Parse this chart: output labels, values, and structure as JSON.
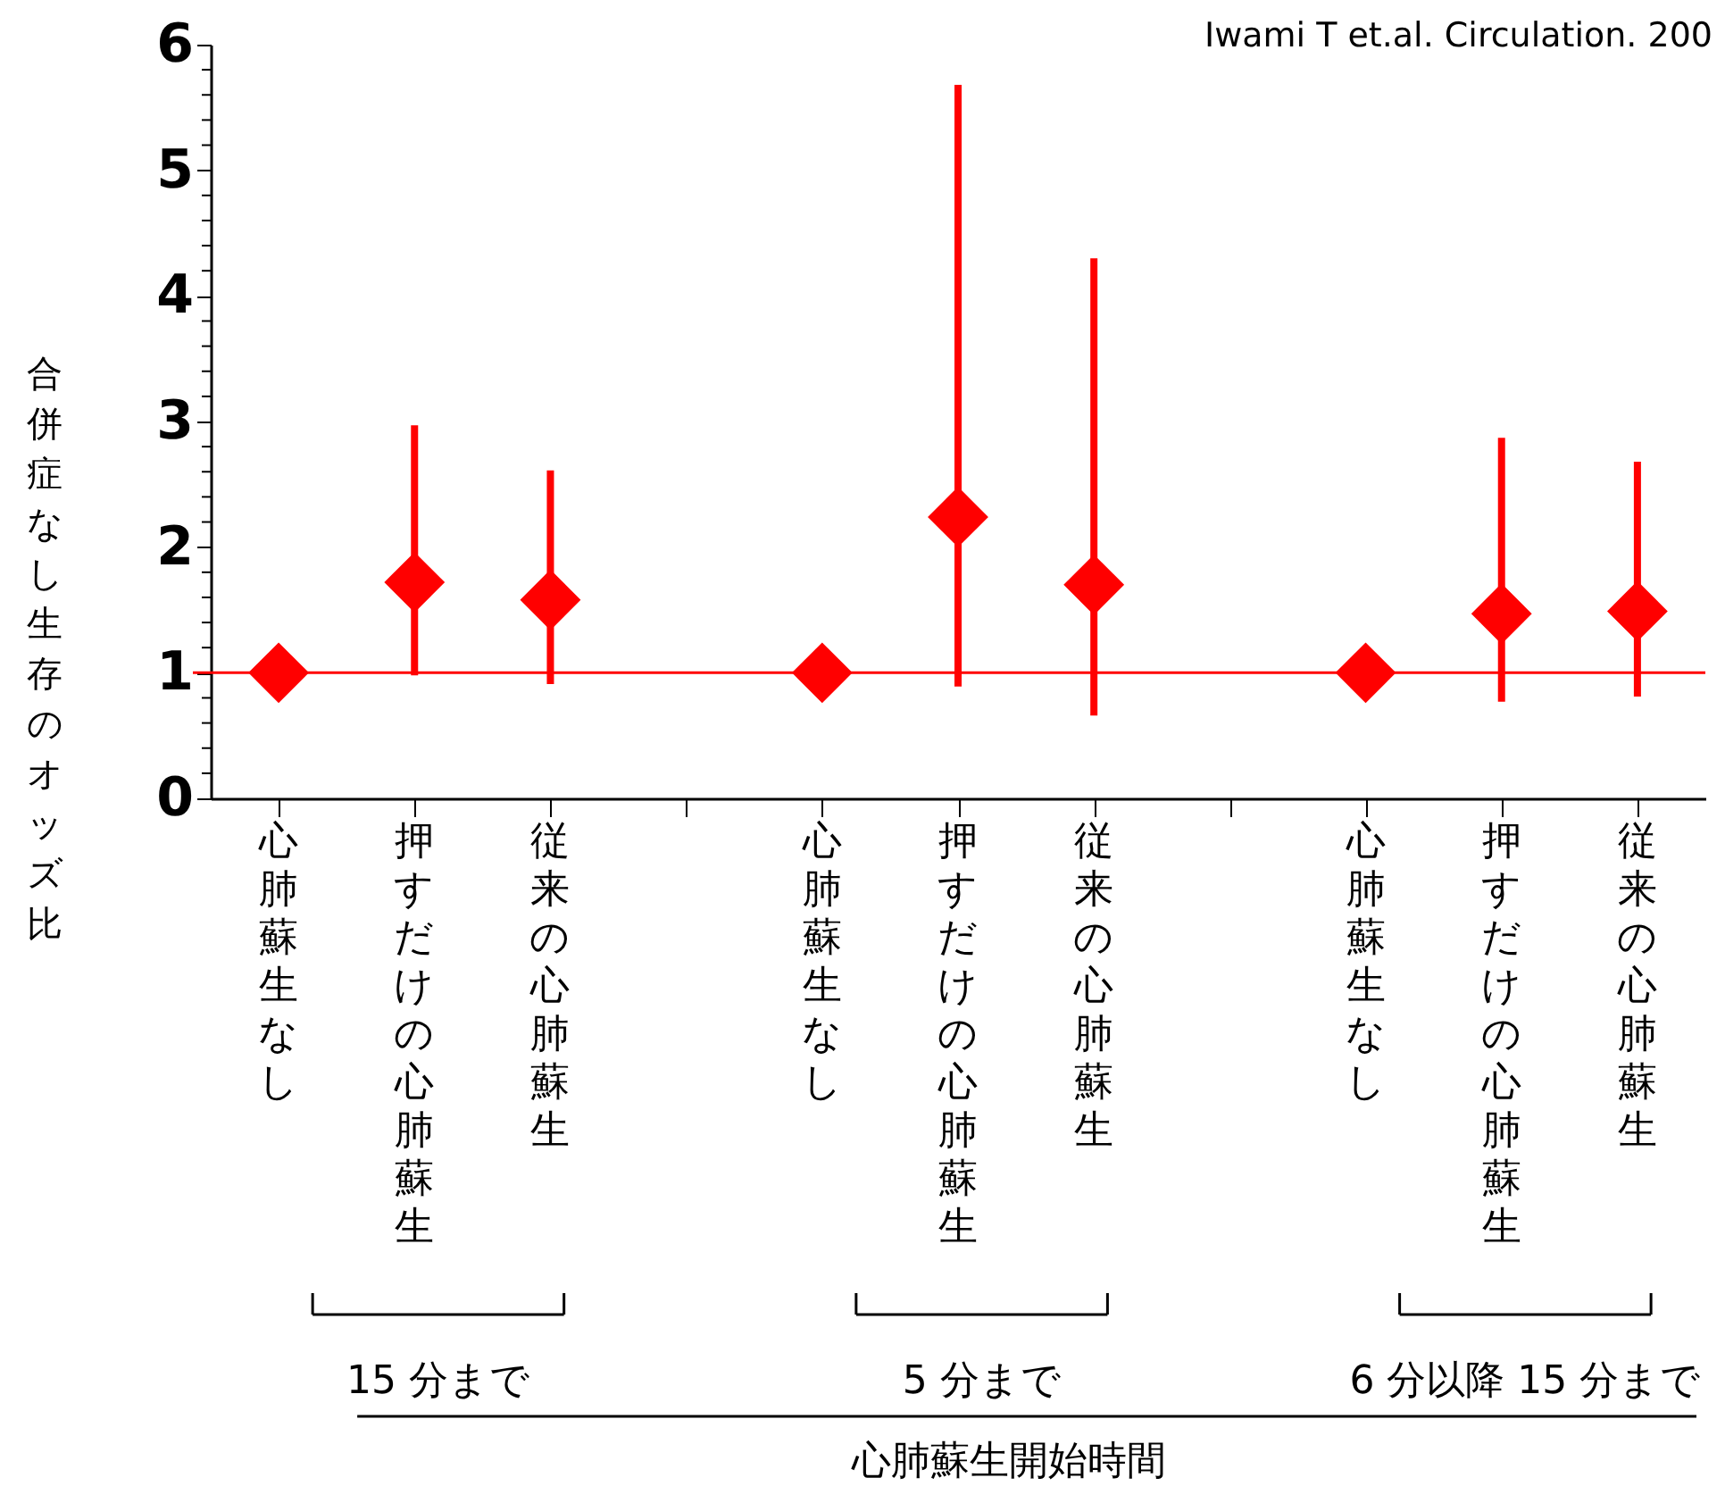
{
  "chart_data": {
    "type": "scatter",
    "ylabel": "合併症なし生存のオッズ比",
    "categories": [
      "心肺蘇生なし",
      "押すだけの心肺蘇生",
      "従来の心肺蘇生",
      null,
      "心肺蘇生なし",
      "押すだけの心肺蘇生",
      "従来の心肺蘇生",
      null,
      "心肺蘇生なし",
      "押すだけの心肺蘇生",
      "従来の心肺蘇生"
    ],
    "series": [
      {
        "color": "#ff0000",
        "values": [
          1.0,
          1.72,
          1.58,
          null,
          1.0,
          2.24,
          1.7,
          null,
          1.0,
          1.47,
          1.49
        ],
        "errors": [
          null,
          [
            0.98,
            2.97
          ],
          [
            0.91,
            2.61
          ],
          null,
          null,
          [
            0.89,
            5.68
          ],
          [
            0.66,
            4.3
          ],
          null,
          null,
          [
            0.77,
            2.87
          ],
          [
            0.81,
            2.68
          ]
        ]
      }
    ],
    "marker": "diamond",
    "ylim": [
      0,
      6
    ],
    "yticks": [
      0,
      {
        "value": 0.2,
        "label": null
      },
      {
        "value": 0.4,
        "label": null
      },
      {
        "value": 0.6,
        "label": null
      },
      {
        "value": 0.8,
        "label": null
      },
      1,
      {
        "value": 1.2,
        "label": null
      },
      {
        "value": 1.4,
        "label": null
      },
      {
        "value": 1.6,
        "label": null
      },
      {
        "value": 1.8,
        "label": null
      },
      2,
      {
        "value": 2.2,
        "label": null
      },
      {
        "value": 2.4,
        "label": null
      },
      {
        "value": 2.6,
        "label": null
      },
      {
        "value": 2.8,
        "label": null
      },
      3,
      {
        "value": 3.2,
        "label": null
      },
      {
        "value": 3.4,
        "label": null
      },
      {
        "value": 3.6,
        "label": null
      },
      {
        "value": 3.8,
        "label": null
      },
      4,
      {
        "value": 4.2,
        "label": null
      },
      {
        "value": 4.4,
        "label": null
      },
      {
        "value": 4.6,
        "label": null
      },
      {
        "value": 4.8,
        "label": null
      },
      5,
      {
        "value": 5.2,
        "label": null
      },
      {
        "value": 5.4,
        "label": null
      },
      {
        "value": 5.6,
        "label": null
      },
      {
        "value": 5.8,
        "label": null
      },
      6
    ],
    "ref_lines": [
      {
        "axis": "y",
        "value": 1,
        "color": "#ff0000"
      }
    ],
    "annotations": [
      "Iwami T et.al. Circulation. 200",
      "15 分まで",
      "5 分まで",
      "6 分以降 15 分まで",
      "心肺蘇生開始時間"
    ]
  }
}
